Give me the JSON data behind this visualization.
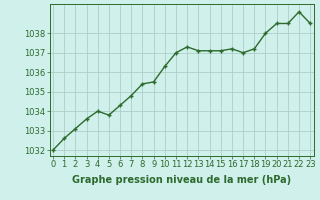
{
  "x": [
    0,
    1,
    2,
    3,
    4,
    5,
    6,
    7,
    8,
    9,
    10,
    11,
    12,
    13,
    14,
    15,
    16,
    17,
    18,
    19,
    20,
    21,
    22,
    23
  ],
  "y": [
    1032.0,
    1032.6,
    1033.1,
    1033.6,
    1034.0,
    1033.8,
    1034.3,
    1034.8,
    1035.4,
    1035.5,
    1036.3,
    1037.0,
    1037.3,
    1037.1,
    1037.1,
    1037.1,
    1037.2,
    1037.0,
    1037.2,
    1038.0,
    1038.5,
    1038.5,
    1039.1,
    1038.5
  ],
  "line_color": "#2d6a2d",
  "marker_color": "#2d6a2d",
  "bg_color": "#cff0eb",
  "grid_color": "#a8c8c0",
  "axis_color": "#2d6a2d",
  "tick_color": "#2d6a2d",
  "label_color": "#2d6a2d",
  "xlabel": "Graphe pression niveau de la mer (hPa)",
  "ylim_min": 1031.7,
  "ylim_max": 1039.5,
  "yticks": [
    1032,
    1033,
    1034,
    1035,
    1036,
    1037,
    1038
  ],
  "xticks": [
    0,
    1,
    2,
    3,
    4,
    5,
    6,
    7,
    8,
    9,
    10,
    11,
    12,
    13,
    14,
    15,
    16,
    17,
    18,
    19,
    20,
    21,
    22,
    23
  ],
  "font_size_xlabel": 7,
  "font_size_ticks": 6.0,
  "line_width": 1.0,
  "marker_size": 3.5
}
